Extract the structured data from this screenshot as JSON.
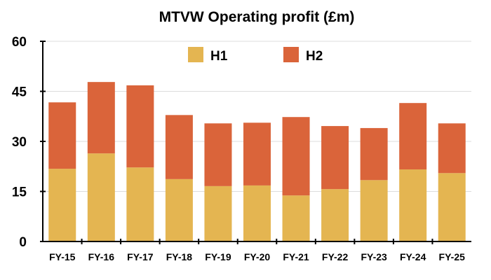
{
  "chart_data": {
    "type": "bar",
    "stacked": true,
    "title": "MTVW Operating profit (£m)",
    "xlabel": "",
    "ylabel": "",
    "ylim": [
      0,
      60
    ],
    "yticks": [
      0,
      15,
      30,
      45,
      60
    ],
    "grid": true,
    "legend_position": "top-center",
    "categories": [
      "FY-15",
      "FY-16",
      "FY-17",
      "FY-18",
      "FY-19",
      "FY-20",
      "FY-21",
      "FY-22",
      "FY-23",
      "FY-24",
      "FY-25"
    ],
    "series": [
      {
        "name": "H1",
        "color": "#E4B551",
        "values": [
          21.8,
          26.4,
          22.2,
          18.7,
          16.6,
          16.8,
          13.8,
          15.7,
          18.4,
          21.6,
          20.5
        ]
      },
      {
        "name": "H2",
        "color": "#DA643A",
        "values": [
          19.9,
          21.4,
          24.6,
          19.2,
          18.8,
          18.8,
          23.5,
          18.9,
          15.6,
          19.9,
          14.9
        ]
      }
    ]
  }
}
